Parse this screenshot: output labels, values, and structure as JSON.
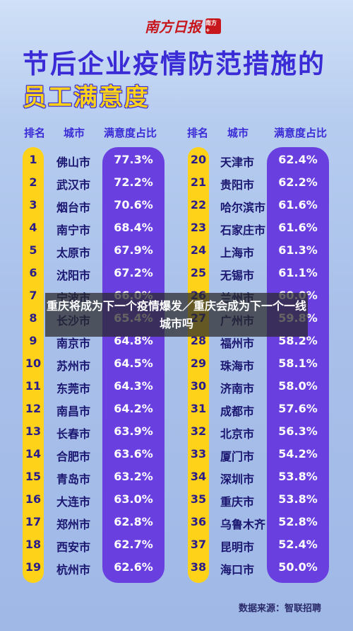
{
  "brand": {
    "name": "南方日报",
    "seal": "南方+"
  },
  "title_line1": "节后企业疫情防范措施的",
  "title_line2": "员工满意度",
  "overlay_caption": "重庆将成为下一个疫情爆发／重庆会成为下一个一线城市吗",
  "source": "数据来源：智联招聘",
  "chart_data": {
    "type": "table",
    "columns": [
      "排名",
      "城市",
      "满意度占比"
    ],
    "rows": [
      {
        "rank": "1",
        "city": "佛山市",
        "pct": "77.3%"
      },
      {
        "rank": "2",
        "city": "武汉市",
        "pct": "72.2%"
      },
      {
        "rank": "3",
        "city": "烟台市",
        "pct": "70.6%"
      },
      {
        "rank": "4",
        "city": "南宁市",
        "pct": "68.4%"
      },
      {
        "rank": "5",
        "city": "太原市",
        "pct": "67.9%"
      },
      {
        "rank": "6",
        "city": "沈阳市",
        "pct": "67.2%"
      },
      {
        "rank": "7",
        "city": "宁波市",
        "pct": "66.0%"
      },
      {
        "rank": "8",
        "city": "长沙市",
        "pct": "65.4%"
      },
      {
        "rank": "9",
        "city": "南京市",
        "pct": "64.8%"
      },
      {
        "rank": "10",
        "city": "苏州市",
        "pct": "64.5%"
      },
      {
        "rank": "11",
        "city": "东莞市",
        "pct": "64.3%"
      },
      {
        "rank": "12",
        "city": "南昌市",
        "pct": "64.2%"
      },
      {
        "rank": "13",
        "city": "长春市",
        "pct": "63.9%"
      },
      {
        "rank": "14",
        "city": "合肥市",
        "pct": "63.6%"
      },
      {
        "rank": "15",
        "city": "青岛市",
        "pct": "63.2%"
      },
      {
        "rank": "16",
        "city": "大连市",
        "pct": "63.0%"
      },
      {
        "rank": "17",
        "city": "郑州市",
        "pct": "62.8%"
      },
      {
        "rank": "18",
        "city": "西安市",
        "pct": "62.7%"
      },
      {
        "rank": "19",
        "city": "杭州市",
        "pct": "62.6%"
      },
      {
        "rank": "20",
        "city": "天津市",
        "pct": "62.4%"
      },
      {
        "rank": "21",
        "city": "贵阳市",
        "pct": "62.2%"
      },
      {
        "rank": "22",
        "city": "哈尔滨市",
        "pct": "61.6%"
      },
      {
        "rank": "23",
        "city": "石家庄市",
        "pct": "61.6%"
      },
      {
        "rank": "24",
        "city": "上海市",
        "pct": "61.3%"
      },
      {
        "rank": "25",
        "city": "无锡市",
        "pct": "61.1%"
      },
      {
        "rank": "26",
        "city": "兰州市",
        "pct": "60.0%"
      },
      {
        "rank": "27",
        "city": "广州市",
        "pct": "59.8%"
      },
      {
        "rank": "28",
        "city": "福州市",
        "pct": "58.2%"
      },
      {
        "rank": "29",
        "city": "珠海市",
        "pct": "58.1%"
      },
      {
        "rank": "30",
        "city": "济南市",
        "pct": "58.0%"
      },
      {
        "rank": "31",
        "city": "成都市",
        "pct": "57.6%"
      },
      {
        "rank": "32",
        "city": "北京市",
        "pct": "56.3%"
      },
      {
        "rank": "33",
        "city": "厦门市",
        "pct": "54.2%"
      },
      {
        "rank": "34",
        "city": "深圳市",
        "pct": "53.8%"
      },
      {
        "rank": "35",
        "city": "重庆市",
        "pct": "53.8%"
      },
      {
        "rank": "36",
        "city": "乌鲁木齐",
        "pct": "52.8%"
      },
      {
        "rank": "37",
        "city": "昆明市",
        "pct": "52.4%"
      },
      {
        "rank": "38",
        "city": "海口市",
        "pct": "50.0%"
      }
    ]
  }
}
